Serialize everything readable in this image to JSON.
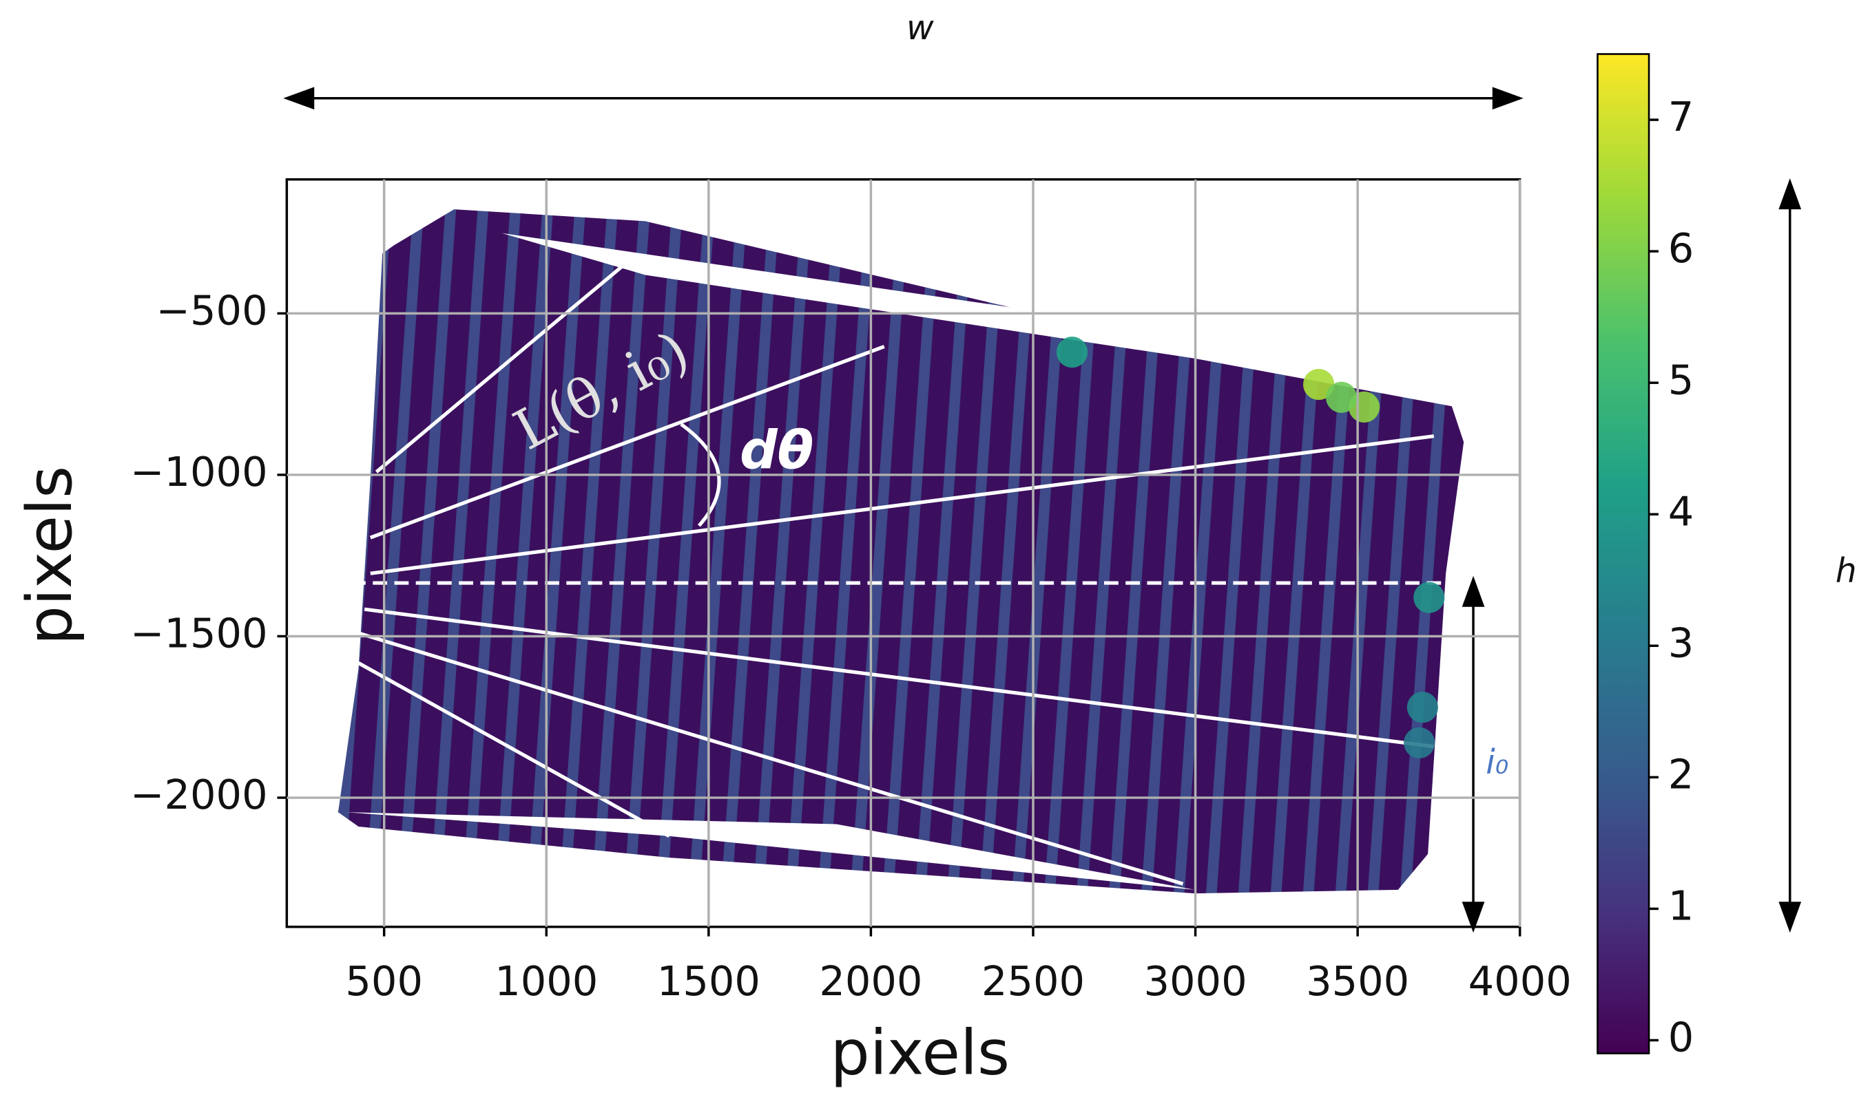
{
  "chart_data": {
    "type": "scatter",
    "xlabel": "pixels",
    "ylabel": "pixels",
    "xlim": [
      200,
      4000
    ],
    "xticks": [
      500,
      1000,
      1500,
      2000,
      2500,
      3000,
      3500,
      4000
    ],
    "ylim": [
      -2400,
      -85
    ],
    "yticks": [
      {
        "value": -500,
        "label": "−500"
      },
      {
        "value": -1000,
        "label": "−1000"
      },
      {
        "value": -1500,
        "label": "−1500"
      },
      {
        "value": -2000,
        "label": "−2000"
      }
    ],
    "grid": true,
    "colormap": "viridis",
    "clim": [
      -0.1,
      7.5
    ],
    "cticks": [
      0,
      1,
      2,
      3,
      4,
      5,
      6,
      7
    ],
    "points": {
      "x": [
        2620,
        3380,
        3520,
        3450,
        3720,
        3700,
        3690
      ],
      "y": [
        -620,
        -720,
        -790,
        -760,
        -1380,
        -1720,
        -1830
      ],
      "values": [
        4.2,
        6.5,
        6.2,
        5.8,
        3.8,
        3.3,
        3.0
      ]
    },
    "annotations": {
      "width": "w",
      "height": "h",
      "offset": "i₀",
      "length": "L(θ, i₀)",
      "angle": "dθ"
    }
  }
}
